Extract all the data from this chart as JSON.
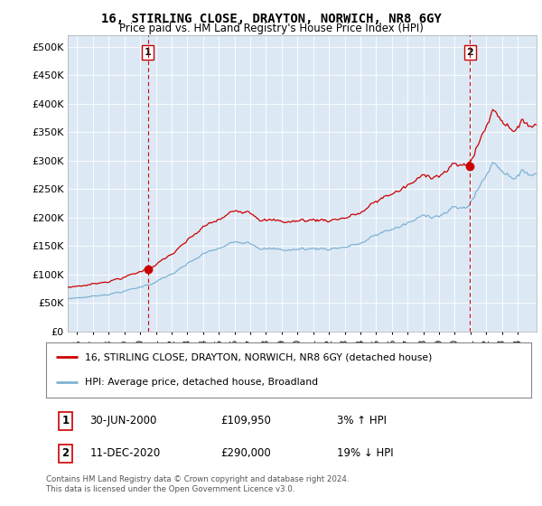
{
  "title": "16, STIRLING CLOSE, DRAYTON, NORWICH, NR8 6GY",
  "subtitle": "Price paid vs. HM Land Registry's House Price Index (HPI)",
  "ylabel_ticks": [
    "£0",
    "£50K",
    "£100K",
    "£150K",
    "£200K",
    "£250K",
    "£300K",
    "£350K",
    "£400K",
    "£450K",
    "£500K"
  ],
  "ytick_values": [
    0,
    50000,
    100000,
    150000,
    200000,
    250000,
    300000,
    350000,
    400000,
    450000,
    500000
  ],
  "ylim": [
    0,
    520000
  ],
  "xlim_start": 1995.4,
  "xlim_end": 2025.2,
  "hpi_color": "#7fb3d3",
  "price_color": "#cc0000",
  "plot_bg_color": "#dce9f5",
  "marker1_x": 2000.5,
  "marker1_y": 109950,
  "marker2_x": 2020.96,
  "marker2_y": 290000,
  "vline1_x": 2000.5,
  "vline2_x": 2020.96,
  "legend_line1": "16, STIRLING CLOSE, DRAYTON, NORWICH, NR8 6GY (detached house)",
  "legend_line2": "HPI: Average price, detached house, Broadland",
  "note1_date": "30-JUN-2000",
  "note1_price": "£109,950",
  "note1_hpi": "3% ↑ HPI",
  "note2_date": "11-DEC-2020",
  "note2_price": "£290,000",
  "note2_hpi": "19% ↓ HPI",
  "footer": "Contains HM Land Registry data © Crown copyright and database right 2024.\nThis data is licensed under the Open Government Licence v3.0.",
  "background_color": "#ffffff",
  "grid_color": "#ffffff",
  "xtick_years": [
    1996,
    1997,
    1998,
    1999,
    2000,
    2001,
    2002,
    2003,
    2004,
    2005,
    2006,
    2007,
    2008,
    2009,
    2010,
    2011,
    2012,
    2013,
    2014,
    2015,
    2016,
    2017,
    2018,
    2019,
    2020,
    2021,
    2022,
    2023,
    2024
  ]
}
